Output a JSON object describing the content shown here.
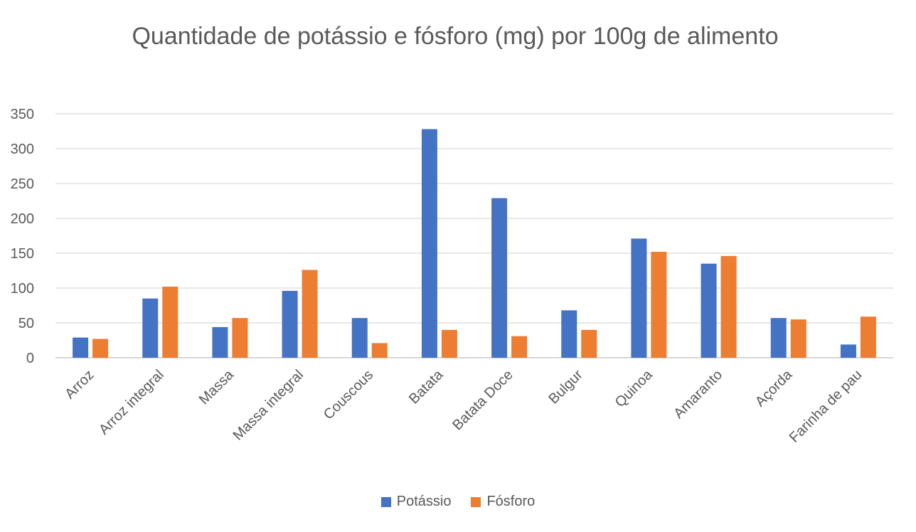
{
  "chart_data": {
    "type": "bar",
    "title": "Quantidade de potássio e fósforo (mg) por 100g de alimento",
    "categories": [
      "Arroz",
      "Arroz integral",
      "Massa",
      "Massa integral",
      "Couscous",
      "Batata",
      "Batata Doce",
      "Bulgur",
      "Quinoa",
      "Amaranto",
      "Açorda",
      "Farinha de pau"
    ],
    "series": [
      {
        "name": "Potássio",
        "color": "#4472C4",
        "values": [
          29,
          85,
          44,
          96,
          57,
          328,
          229,
          68,
          171,
          135,
          57,
          19
        ]
      },
      {
        "name": "Fósforo",
        "color": "#ED7D31",
        "values": [
          27,
          102,
          57,
          126,
          21,
          40,
          31,
          40,
          152,
          146,
          55,
          59
        ]
      }
    ],
    "xlabel": "",
    "ylabel": "",
    "ylim": [
      0,
      350
    ],
    "yticks": [
      "0",
      "50",
      "100",
      "150",
      "200",
      "250",
      "300",
      "350"
    ],
    "grid": true,
    "legend_position": "bottom"
  }
}
